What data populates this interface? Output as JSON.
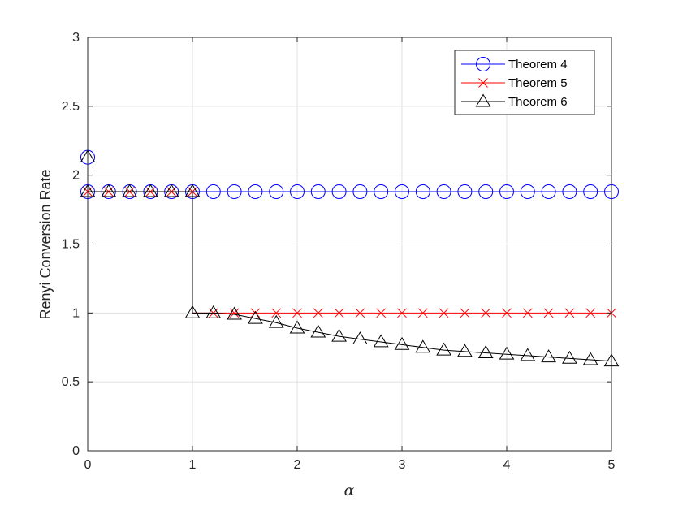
{
  "chart_data": {
    "type": "line",
    "title": "",
    "xlabel": "α",
    "ylabel": "Renyi Conversion Rate",
    "xlim": [
      0,
      5
    ],
    "ylim": [
      0,
      3
    ],
    "x_ticks": [
      "0",
      "1",
      "2",
      "3",
      "4",
      "5"
    ],
    "y_ticks": [
      "0",
      "0.5",
      "1",
      "1.5",
      "2",
      "2.5",
      "3"
    ],
    "grid": true,
    "legend_position": "top-right",
    "series": [
      {
        "name": "Theorem 4",
        "color": "#0000ff",
        "marker": "circle",
        "line_x": [
          0,
          0,
          5
        ],
        "line_y": [
          2.13,
          1.88,
          1.88
        ],
        "marker_x": [
          0,
          0,
          0.2,
          0.4,
          0.6,
          0.8,
          1.0,
          1.2,
          1.4,
          1.6,
          1.8,
          2.0,
          2.2,
          2.4,
          2.6,
          2.8,
          3.0,
          3.2,
          3.4,
          3.6,
          3.8,
          4.0,
          4.2,
          4.4,
          4.6,
          4.8,
          5.0
        ],
        "marker_y": [
          2.13,
          1.88,
          1.88,
          1.88,
          1.88,
          1.88,
          1.88,
          1.88,
          1.88,
          1.88,
          1.88,
          1.88,
          1.88,
          1.88,
          1.88,
          1.88,
          1.88,
          1.88,
          1.88,
          1.88,
          1.88,
          1.88,
          1.88,
          1.88,
          1.88,
          1.88,
          1.88
        ]
      },
      {
        "name": "Theorem 5",
        "color": "#ff0000",
        "marker": "x",
        "line_x": [
          0,
          0,
          1,
          1,
          5
        ],
        "line_y": [
          3.0,
          1.88,
          1.88,
          1.0,
          1.0
        ],
        "marker_x": [
          0,
          0.2,
          0.4,
          0.6,
          0.8,
          1.0,
          1.2,
          1.4,
          1.6,
          1.8,
          2.0,
          2.2,
          2.4,
          2.6,
          2.8,
          3.0,
          3.2,
          3.4,
          3.6,
          3.8,
          4.0,
          4.2,
          4.4,
          4.6,
          4.8,
          5.0
        ],
        "marker_y": [
          1.88,
          1.88,
          1.88,
          1.88,
          1.88,
          1.88,
          1.0,
          1.0,
          1.0,
          1.0,
          1.0,
          1.0,
          1.0,
          1.0,
          1.0,
          1.0,
          1.0,
          1.0,
          1.0,
          1.0,
          1.0,
          1.0,
          1.0,
          1.0,
          1.0,
          1.0
        ]
      },
      {
        "name": "Theorem 6",
        "color": "#000000",
        "marker": "triangle",
        "line_x": [
          0,
          0,
          0.2,
          0.4,
          0.6,
          0.8,
          1.0,
          1.0,
          1.2,
          1.4,
          1.6,
          1.8,
          2.0,
          2.2,
          2.4,
          2.6,
          2.8,
          3.0,
          3.2,
          3.4,
          3.6,
          3.8,
          4.0,
          4.2,
          4.4,
          4.6,
          4.8,
          5.0
        ],
        "line_y": [
          2.13,
          1.88,
          1.88,
          1.88,
          1.88,
          1.88,
          1.88,
          1.0,
          1.0,
          0.99,
          0.96,
          0.93,
          0.89,
          0.86,
          0.83,
          0.81,
          0.79,
          0.77,
          0.75,
          0.73,
          0.72,
          0.71,
          0.7,
          0.69,
          0.68,
          0.67,
          0.66,
          0.65
        ],
        "marker_x": [
          0,
          0,
          0.2,
          0.4,
          0.6,
          0.8,
          1.0,
          1.0,
          1.2,
          1.4,
          1.6,
          1.8,
          2.0,
          2.2,
          2.4,
          2.6,
          2.8,
          3.0,
          3.2,
          3.4,
          3.6,
          3.8,
          4.0,
          4.2,
          4.4,
          4.6,
          4.8,
          5.0
        ],
        "marker_y": [
          2.13,
          1.88,
          1.88,
          1.88,
          1.88,
          1.88,
          1.88,
          1.0,
          1.0,
          0.99,
          0.96,
          0.93,
          0.89,
          0.86,
          0.83,
          0.81,
          0.79,
          0.77,
          0.75,
          0.73,
          0.72,
          0.71,
          0.7,
          0.69,
          0.68,
          0.67,
          0.66,
          0.65
        ]
      }
    ]
  }
}
